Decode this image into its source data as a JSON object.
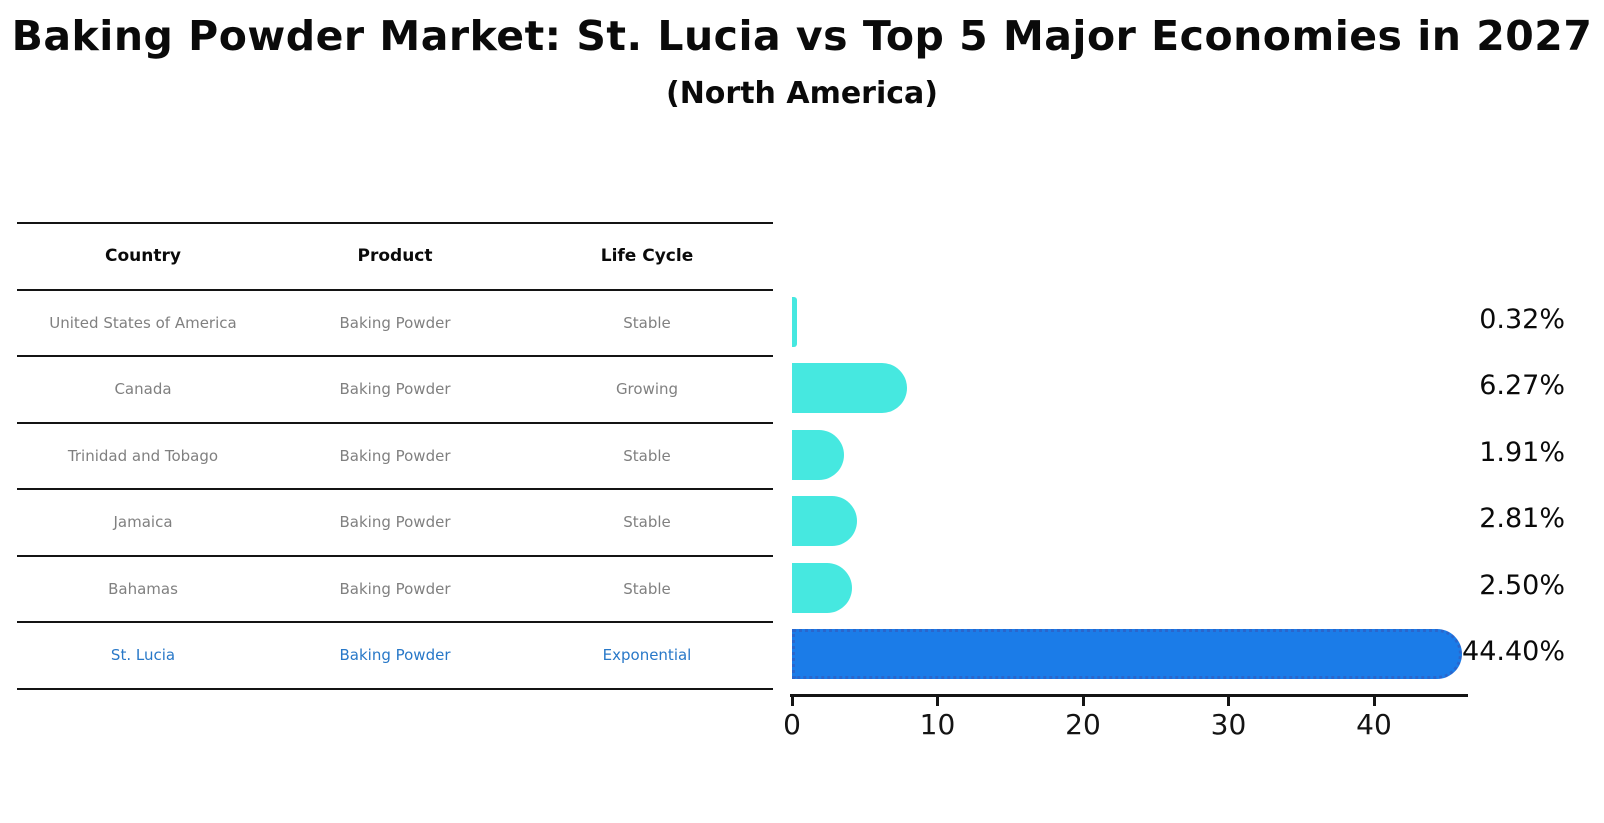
{
  "title": "Baking Powder Market: St. Lucia vs Top 5 Major Economies in 2027",
  "subtitle": "(North America)",
  "table": {
    "headers": [
      "Country",
      "Product",
      "Life Cycle"
    ],
    "rows": [
      {
        "country": "United States of America",
        "product": "Baking Powder",
        "life_cycle": "Stable"
      },
      {
        "country": "Canada",
        "product": "Baking Powder",
        "life_cycle": "Growing"
      },
      {
        "country": "Trinidad and Tobago",
        "product": "Baking Powder",
        "life_cycle": "Stable"
      },
      {
        "country": "Jamaica",
        "product": "Baking Powder",
        "life_cycle": "Stable"
      },
      {
        "country": "Bahamas",
        "product": "Baking Powder",
        "life_cycle": "Stable"
      },
      {
        "country": "St. Lucia",
        "product": "Baking Powder",
        "life_cycle": "Exponential"
      }
    ]
  },
  "chart_data": {
    "type": "bar",
    "orientation": "horizontal",
    "title": "Baking Powder Market: St. Lucia vs Top 5 Major Economies in 2027",
    "subtitle": "(North America)",
    "categories": [
      "United States of America",
      "Canada",
      "Trinidad and Tobago",
      "Jamaica",
      "Bahamas",
      "St. Lucia"
    ],
    "values": [
      0.32,
      6.27,
      1.91,
      2.81,
      2.5,
      44.4
    ],
    "value_labels": [
      "0.32%",
      "6.27%",
      "1.91%",
      "2.81%",
      "2.50%",
      "44.40%"
    ],
    "highlight_index": 5,
    "xticks": [
      "0",
      "10",
      "20",
      "30",
      "40"
    ],
    "xlim": [
      0,
      46.4
    ],
    "grid": false,
    "legend": false,
    "xlabel": "",
    "ylabel": ""
  },
  "colors": {
    "bar": "#46e8e0",
    "highlight_bar": "#1b7ce8",
    "highlight_border": "#2a66cc",
    "highlight_text": "#2878c8",
    "row_text": "#808080",
    "axis": "#141414"
  }
}
